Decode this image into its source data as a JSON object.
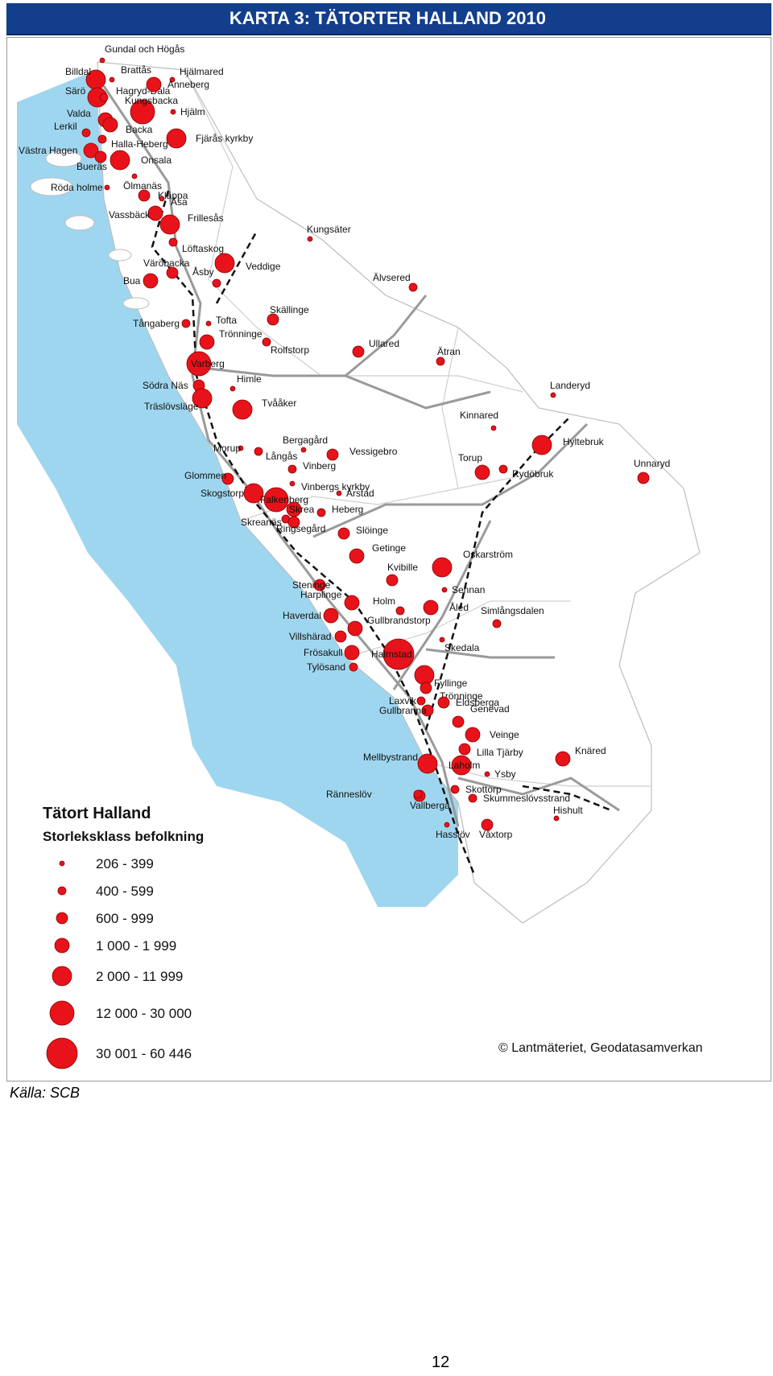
{
  "title": "KARTA 3: TÄTORTER HALLAND 2010",
  "source": "Källa: SCB",
  "page_number": "12",
  "copyright": "© Lantmäteriet, Geodatasamverkan",
  "legend": {
    "title": "Tätort Halland",
    "subtitle": "Storleksklass befolkning",
    "classes": [
      "206 - 399",
      "400 - 599",
      "600 - 999",
      "1 000 - 1 999",
      "2 000 - 11 999",
      "12 000 - 30 000",
      "30 001 - 60 446"
    ]
  },
  "colors": {
    "marker": "#e8131a",
    "sea": "#9fd6ef",
    "land": "#ffffff",
    "road": "#9a9a9a",
    "rail": "#111111",
    "title_bg": "#123e8c"
  },
  "places": [
    {
      "name": "Gundal och Högås",
      "c": 1
    },
    {
      "name": "Billdal",
      "c": 5
    },
    {
      "name": "Brattås",
      "c": 1
    },
    {
      "name": "Hjälmared",
      "c": 1
    },
    {
      "name": "Särö",
      "c": 5
    },
    {
      "name": "Hagryd-Dala",
      "c": 2
    },
    {
      "name": "Anneberg",
      "c": 4
    },
    {
      "name": "Kungsbacka",
      "c": 6
    },
    {
      "name": "Valda",
      "c": 4
    },
    {
      "name": "Hjälm",
      "c": 1
    },
    {
      "name": "Lerkil",
      "c": 2
    },
    {
      "name": "Backa",
      "c": 4
    },
    {
      "name": "Halla-Heberg",
      "c": 2
    },
    {
      "name": "Fjärås kyrkby",
      "c": 5
    },
    {
      "name": "Västra Hagen",
      "c": 4
    },
    {
      "name": "Bueräs",
      "c": 3
    },
    {
      "name": "Onsala",
      "c": 5
    },
    {
      "name": "Ölmanäs",
      "c": 1
    },
    {
      "name": "Röda holme",
      "c": 1
    },
    {
      "name": "Kläppa",
      "c": 3
    },
    {
      "name": "Åsa",
      "c": 1
    },
    {
      "name": "Vassbäck",
      "c": 4
    },
    {
      "name": "Frillesås",
      "c": 5
    },
    {
      "name": "Löftaskog",
      "c": 2
    },
    {
      "name": "Kungsäter",
      "c": 1
    },
    {
      "name": "Väröbacka",
      "c": 3
    },
    {
      "name": "Veddige",
      "c": 5
    },
    {
      "name": "Bua",
      "c": 4
    },
    {
      "name": "Åsby",
      "c": 2
    },
    {
      "name": "Älvsered",
      "c": 2
    },
    {
      "name": "Skällinge",
      "c": 3
    },
    {
      "name": "Tångaberg",
      "c": 2
    },
    {
      "name": "Tofta",
      "c": 1
    },
    {
      "name": "Trönninge",
      "c": 4
    },
    {
      "name": "Rolfstorp",
      "c": 2
    },
    {
      "name": "Ullared",
      "c": 3
    },
    {
      "name": "Ätran",
      "c": 2
    },
    {
      "name": "Varberg",
      "c": 6
    },
    {
      "name": "Himle",
      "c": 1
    },
    {
      "name": "Södra Näs",
      "c": 3
    },
    {
      "name": "Tvååker",
      "c": 5
    },
    {
      "name": "Träslövsläge",
      "c": 5
    },
    {
      "name": "Landeryd",
      "c": 1
    },
    {
      "name": "Kinnared",
      "c": 1
    },
    {
      "name": "Morup",
      "c": 1
    },
    {
      "name": "Bergagård",
      "c": 1
    },
    {
      "name": "Hyltebruk",
      "c": 5
    },
    {
      "name": "Långås",
      "c": 2
    },
    {
      "name": "Vessigebro",
      "c": 3
    },
    {
      "name": "Torup",
      "c": 4
    },
    {
      "name": "Glommen",
      "c": 3
    },
    {
      "name": "Vinberg",
      "c": 2
    },
    {
      "name": "Vinbergs kyrkby",
      "c": 1
    },
    {
      "name": "Rydöbruk",
      "c": 2
    },
    {
      "name": "Unnaryd",
      "c": 3
    },
    {
      "name": "Skogstorp",
      "c": 5
    },
    {
      "name": "Falkenberg",
      "c": 6
    },
    {
      "name": "Årstad",
      "c": 1
    },
    {
      "name": "Skrea",
      "c": 4
    },
    {
      "name": "Heberg",
      "c": 2
    },
    {
      "name": "Skreanäs",
      "c": 2
    },
    {
      "name": "Ringsegård",
      "c": 3
    },
    {
      "name": "Slöinge",
      "c": 3
    },
    {
      "name": "Getinge",
      "c": 4
    },
    {
      "name": "Oskarström",
      "c": 5
    },
    {
      "name": "Steninge",
      "c": 3
    },
    {
      "name": "Kvibille",
      "c": 3
    },
    {
      "name": "Sennan",
      "c": 1
    },
    {
      "name": "Harplinge",
      "c": 4
    },
    {
      "name": "Holm",
      "c": 2
    },
    {
      "name": "Åled",
      "c": 4
    },
    {
      "name": "Simlångsdalen",
      "c": 2
    },
    {
      "name": "Haverdal",
      "c": 4
    },
    {
      "name": "Gullbrandstorp",
      "c": 4
    },
    {
      "name": "Villshärad",
      "c": 3
    },
    {
      "name": "Halmstad",
      "c": 7
    },
    {
      "name": "Skedala",
      "c": 1
    },
    {
      "name": "Frösakull",
      "c": 4
    },
    {
      "name": "Fyllinge",
      "c": 5
    },
    {
      "name": "Tylösand",
      "c": 2
    },
    {
      "name": "Trönninge",
      "c": 3
    },
    {
      "name": "Laxvik",
      "c": 2
    },
    {
      "name": "Eldsberga",
      "c": 3
    },
    {
      "name": "Gullbranna",
      "c": 3
    },
    {
      "name": "Genevad",
      "c": 3
    },
    {
      "name": "Veinge",
      "c": 4
    },
    {
      "name": "Knäred",
      "c": 4
    },
    {
      "name": "Mellbystrand",
      "c": 5
    },
    {
      "name": "Lilla Tjärby",
      "c": 3
    },
    {
      "name": "Laholm",
      "c": 5
    },
    {
      "name": "Ysby",
      "c": 1
    },
    {
      "name": "Vallberga",
      "c": 3
    },
    {
      "name": "Skummeslövsstrand",
      "c": 2
    },
    {
      "name": "Ränneslöv",
      "c": 2
    },
    {
      "name": "Skottorp",
      "c": 2
    },
    {
      "name": "Våxtorp",
      "c": 3
    },
    {
      "name": "Hishult",
      "c": 1
    },
    {
      "name": "Hasslöv",
      "c": 1
    }
  ]
}
